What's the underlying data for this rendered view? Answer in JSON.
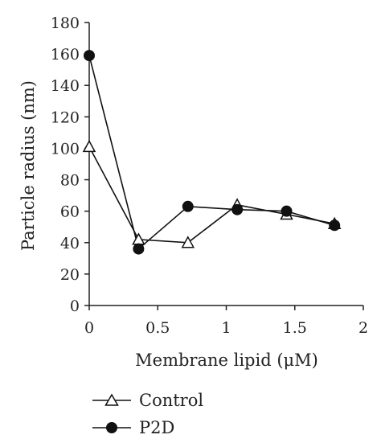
{
  "chart_data": {
    "type": "line",
    "title": "",
    "xlabel": "Membrane lipid (μM)",
    "ylabel": "Particle radius (nm)",
    "xlim": [
      0,
      2
    ],
    "ylim": [
      0,
      180
    ],
    "x_ticks": [
      "0",
      "0.5",
      "1",
      "1.5",
      "2"
    ],
    "y_ticks": [
      "0",
      "20",
      "40",
      "60",
      "80",
      "100",
      "120",
      "140",
      "160",
      "180"
    ],
    "grid": false,
    "legend_position": "bottom-left",
    "series": [
      {
        "name": "Control",
        "marker": "open-triangle",
        "x": [
          0,
          0.36,
          0.72,
          1.08,
          1.44,
          1.79
        ],
        "y": [
          101,
          42,
          40,
          64,
          58,
          52
        ]
      },
      {
        "name": "P2D",
        "marker": "filled-circle",
        "x": [
          0,
          0.36,
          0.72,
          1.08,
          1.44,
          1.79
        ],
        "y": [
          159,
          36,
          63,
          61,
          60,
          51
        ]
      }
    ],
    "colors": {
      "line": "#111111",
      "marker": "#111111"
    }
  }
}
